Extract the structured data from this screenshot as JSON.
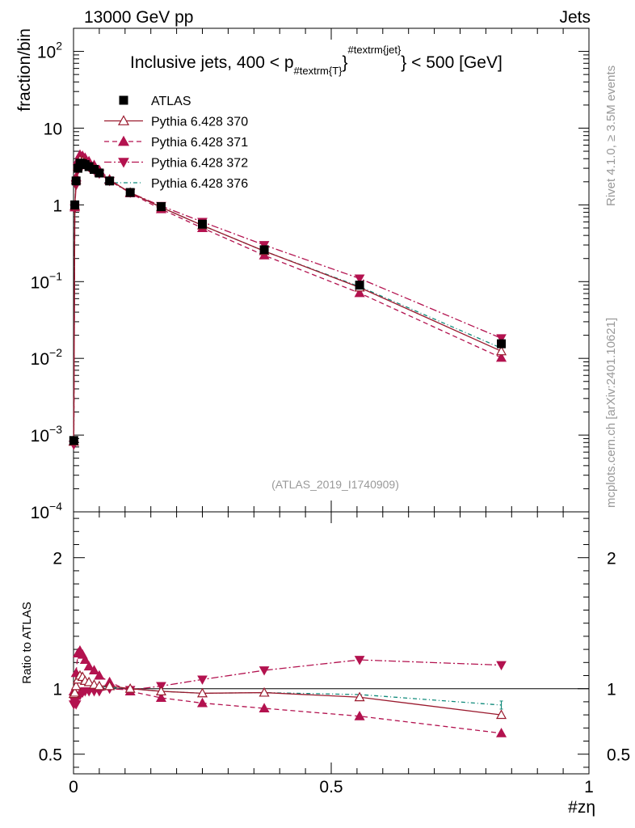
{
  "header": {
    "left": "13000 GeV pp",
    "right": "Jets"
  },
  "side_labels": {
    "rivet": "Rivet 4.1.0, ≥ 3.5M events",
    "mcplots": "mcplots.cern.ch [arXiv:2401.10621]"
  },
  "colors": {
    "data": "#000000",
    "p370": "#9a1a2e",
    "p371": "#b3124f",
    "p372": "#b3124f",
    "p376": "#0f8a7a"
  },
  "chart_data": {
    "type": "line",
    "title": "Inclusive jets, 400 < p",
    "title_sub": "#textrm{T}",
    "title_sup": "#textrm{jet}",
    "title_tail": "} < 500 [GeV]",
    "watermark": "(ATLAS_2019_I1740909)",
    "xlabel": "#zη",
    "ylabel": "fraction/bin",
    "ratio_ylabel": "Ratio to ATLAS",
    "xlim": [
      0,
      1
    ],
    "ylim": [
      0.0001,
      200
    ],
    "yscale": "log",
    "ratio_ylim": [
      0.35,
      2.35
    ],
    "x_ticks": [
      {
        "v": 0,
        "label": "0"
      },
      {
        "v": 0.5,
        "label": "0.5"
      },
      {
        "v": 1,
        "label": "1"
      }
    ],
    "y_ticks": [
      {
        "v": 100,
        "base": "10",
        "exp": "2"
      },
      {
        "v": 10,
        "base": "10",
        "exp": ""
      },
      {
        "v": 1,
        "base": "1",
        "exp": ""
      },
      {
        "v": 0.1,
        "base": "10",
        "exp": "−1"
      },
      {
        "v": 0.01,
        "base": "10",
        "exp": "−2"
      },
      {
        "v": 0.001,
        "base": "10",
        "exp": "−3"
      },
      {
        "v": 0.0001,
        "base": "10",
        "exp": "−4"
      }
    ],
    "ratio_ticks": [
      {
        "v": 2,
        "label": "2"
      },
      {
        "v": 1,
        "label": "1"
      },
      {
        "v": 0.5,
        "label": "0.5"
      }
    ],
    "x": [
      0.0005,
      0.0025,
      0.005,
      0.0085,
      0.0125,
      0.0175,
      0.0225,
      0.03,
      0.04,
      0.05,
      0.07,
      0.11,
      0.17,
      0.25,
      0.37,
      0.555,
      0.83
    ],
    "series": [
      {
        "name": "ATLAS",
        "key": "data",
        "marker": "square",
        "dash": "",
        "values": [
          0.00085,
          1.0,
          2.05,
          3.0,
          3.5,
          3.45,
          3.35,
          3.15,
          2.9,
          2.6,
          2.05,
          1.45,
          0.95,
          0.56,
          0.26,
          0.09,
          0.0155
        ],
        "ratio": [
          1,
          1,
          1,
          1,
          1,
          1,
          1,
          1,
          1,
          1,
          1,
          1,
          1,
          1,
          1,
          1,
          1
        ]
      },
      {
        "name": "Pythia 6.428 370",
        "key": "p370",
        "marker": "tri-up-open",
        "dash": "",
        "values": [
          0.00082,
          0.97,
          2.1,
          3.2,
          3.85,
          3.75,
          3.55,
          3.3,
          3.0,
          2.65,
          2.1,
          1.45,
          0.93,
          0.54,
          0.25,
          0.084,
          0.0124
        ],
        "ratio": [
          0.96,
          0.97,
          1.02,
          1.07,
          1.1,
          1.09,
          1.06,
          1.05,
          1.03,
          1.02,
          1.02,
          1.0,
          0.98,
          0.965,
          0.97,
          0.935,
          0.8
        ]
      },
      {
        "name": "Pythia 6.428 371",
        "key": "p371",
        "marker": "tri-up-filled",
        "dash": "6,4",
        "values": [
          0.00083,
          0.93,
          2.3,
          3.8,
          4.5,
          4.35,
          4.1,
          3.7,
          3.3,
          2.85,
          2.15,
          1.42,
          0.88,
          0.5,
          0.22,
          0.071,
          0.0102
        ],
        "ratio": [
          0.98,
          0.93,
          1.12,
          1.27,
          1.29,
          1.26,
          1.22,
          1.17,
          1.14,
          1.1,
          1.05,
          0.98,
          0.93,
          0.89,
          0.85,
          0.79,
          0.66
        ]
      },
      {
        "name": "Pythia 6.428 372",
        "key": "p372",
        "marker": "tri-down-filled",
        "dash": "9,3,2,3",
        "values": [
          0.00075,
          0.9,
          1.8,
          2.85,
          3.3,
          3.35,
          3.3,
          3.1,
          2.85,
          2.55,
          2.05,
          1.44,
          0.97,
          0.6,
          0.3,
          0.11,
          0.0183
        ],
        "ratio": [
          0.88,
          0.9,
          0.88,
          0.95,
          0.95,
          0.97,
          0.98,
          0.98,
          0.98,
          0.98,
          1.0,
          0.99,
          1.02,
          1.07,
          1.14,
          1.22,
          1.18
        ]
      },
      {
        "name": "Pythia 6.428 376",
        "key": "p376",
        "marker": "none",
        "dash": "5,3,1,3",
        "values": [
          0.00085,
          1.02,
          2.25,
          3.4,
          3.9,
          3.75,
          3.55,
          3.3,
          3.0,
          2.65,
          2.08,
          1.45,
          0.93,
          0.54,
          0.25,
          0.086,
          0.0136
        ],
        "ratio": [
          1.0,
          1.02,
          1.1,
          1.13,
          1.12,
          1.09,
          1.06,
          1.05,
          1.03,
          1.02,
          1.01,
          1.0,
          0.98,
          0.965,
          0.97,
          0.955,
          0.875
        ]
      }
    ]
  }
}
